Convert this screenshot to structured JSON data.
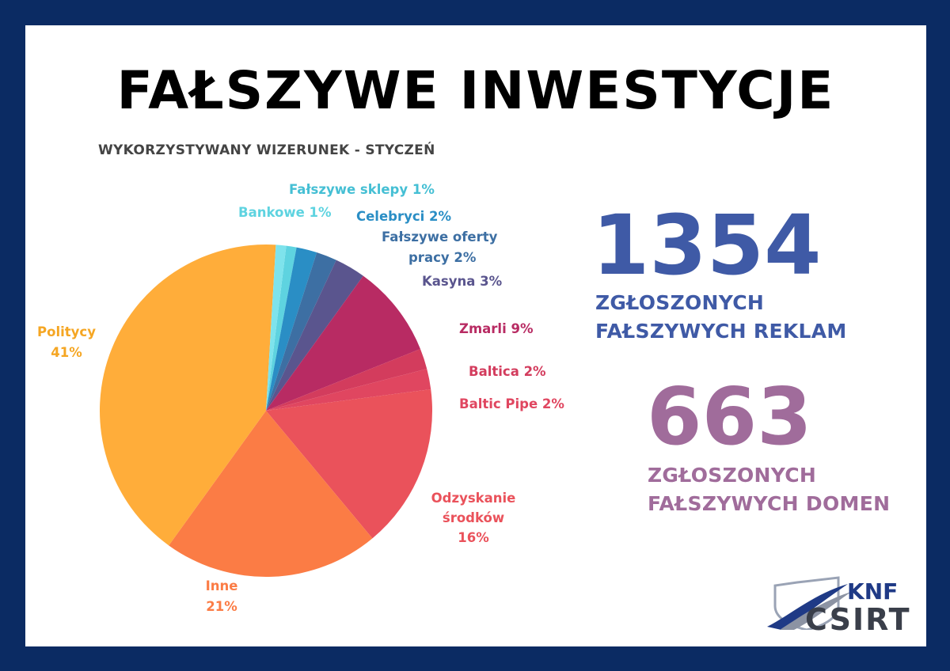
{
  "title": "FAŁSZYWE INWESTYCJE",
  "subtitle": "WYKORZYSTYWANY WIZERUNEK - STYCZEŃ",
  "chart_data": {
    "type": "pie",
    "slices": [
      {
        "label": "Fałszywe sklepy 1%",
        "value": 1,
        "color": "#5ed3e0"
      },
      {
        "label": "Celebryci 2%",
        "value": 2,
        "color": "#2a8ec5"
      },
      {
        "label": "Fałszywe oferty pracy 2%",
        "value": 2,
        "color": "#3d6fa3"
      },
      {
        "label": "Kasyna 3%",
        "value": 3,
        "color": "#5a558e"
      },
      {
        "label": "Zmarli 9%",
        "value": 9,
        "color": "#b82b63"
      },
      {
        "label": "Baltica 2%",
        "value": 2,
        "color": "#d33c5d"
      },
      {
        "label": "Baltic Pipe 2%",
        "value": 2,
        "color": "#e04660"
      },
      {
        "label": "Odzyskanie środków 16%",
        "value": 16,
        "color": "#ea525b"
      },
      {
        "label": "Inne 21%",
        "value": 21,
        "color": "#fb7c45"
      },
      {
        "label": "Politycy 41%",
        "value": 41,
        "color": "#ffad3a"
      },
      {
        "label": "Bankowe 1%",
        "value": 1,
        "color": "#7ee3ec"
      }
    ]
  },
  "labels": {
    "falszywe_sklepy": "Fałszywe sklepy 1%",
    "bankowe": "Bankowe 1%",
    "celebryci": "Celebryci 2%",
    "oferty_line1": "Fałszywe oferty",
    "oferty_line2": "pracy 2%",
    "kasyna": "Kasyna 3%",
    "zmarli": "Zmarli 9%",
    "baltica": "Baltica 2%",
    "baltic_pipe": "Baltic Pipe 2%",
    "odzyskanie_line1": "Odzyskanie",
    "odzyskanie_line2": "środków",
    "odzyskanie_line3": "16%",
    "politycy_line1": "Politycy",
    "politycy_line2": "41%",
    "inne_line1": "Inne",
    "inne_line2": "21%"
  },
  "stats": {
    "ads_number": "1354",
    "ads_line1": "ZGŁOSZONYCH",
    "ads_line2": "FAŁSZYWYCH REKLAM",
    "domains_number": "663",
    "domains_line1": "ZGŁOSZONYCH",
    "domains_line2": "FAŁSZYWYCH DOMEN"
  },
  "colors": {
    "border": "#0b2b63",
    "ads": "#3f5aa6",
    "domains": "#a06c9b"
  },
  "logo": {
    "top": "KNF",
    "bottom": "CSIRT",
    "icon": "shield-icon"
  }
}
